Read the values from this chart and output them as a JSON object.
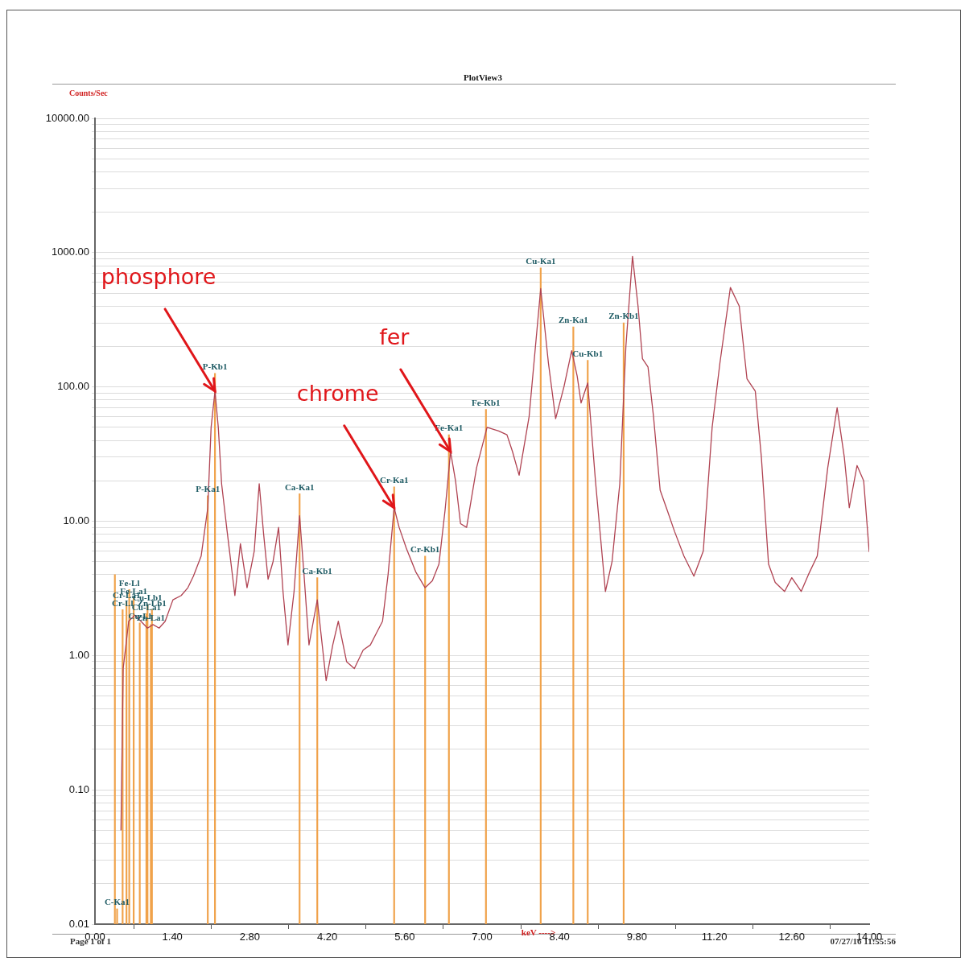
{
  "chart_data": {
    "type": "line",
    "title": "PlotView3",
    "xlabel": "keV ---->",
    "ylabel": "Counts/Sec",
    "log": "y",
    "grid": "y",
    "legend": false,
    "xlim": [
      0,
      14
    ],
    "ylim": [
      0.01,
      10000
    ],
    "xticks": [
      {
        "value": 0,
        "label": "0.00"
      },
      {
        "value": 1.4,
        "label": "1.40"
      },
      {
        "value": 2.8,
        "label": "2.80"
      },
      {
        "value": 4.2,
        "label": "4.20"
      },
      {
        "value": 5.6,
        "label": "5.60"
      },
      {
        "value": 7,
        "label": "7.00"
      },
      {
        "value": 8.4,
        "label": "8.40"
      },
      {
        "value": 9.8,
        "label": "9.80"
      },
      {
        "value": 11.2,
        "label": "11.20"
      },
      {
        "value": 12.6,
        "label": "12.60"
      },
      {
        "value": 14,
        "label": "14.00"
      }
    ],
    "yticks": [
      {
        "value": 0.01,
        "label": "0.01"
      },
      {
        "value": 0.02,
        "label": null
      },
      {
        "value": 0.03,
        "label": null
      },
      {
        "value": 0.04,
        "label": null
      },
      {
        "value": 0.05,
        "label": null
      },
      {
        "value": 0.06,
        "label": null
      },
      {
        "value": 0.07,
        "label": null
      },
      {
        "value": 0.08,
        "label": null
      },
      {
        "value": 0.09,
        "label": null
      },
      {
        "value": 0.1,
        "label": "0.10"
      },
      {
        "value": 0.2,
        "label": null
      },
      {
        "value": 0.3,
        "label": null
      },
      {
        "value": 0.4,
        "label": null
      },
      {
        "value": 0.5,
        "label": null
      },
      {
        "value": 0.6,
        "label": null
      },
      {
        "value": 0.7,
        "label": null
      },
      {
        "value": 0.8,
        "label": null
      },
      {
        "value": 0.9,
        "label": null
      },
      {
        "value": 1,
        "label": "1.00"
      },
      {
        "value": 2,
        "label": null
      },
      {
        "value": 3,
        "label": null
      },
      {
        "value": 4,
        "label": null
      },
      {
        "value": 5,
        "label": null
      },
      {
        "value": 6,
        "label": null
      },
      {
        "value": 7,
        "label": null
      },
      {
        "value": 8,
        "label": null
      },
      {
        "value": 9,
        "label": null
      },
      {
        "value": 10,
        "label": "10.00"
      },
      {
        "value": 20,
        "label": null
      },
      {
        "value": 30,
        "label": null
      },
      {
        "value": 40,
        "label": null
      },
      {
        "value": 50,
        "label": null
      },
      {
        "value": 60,
        "label": null
      },
      {
        "value": 70,
        "label": null
      },
      {
        "value": 80,
        "label": null
      },
      {
        "value": 90,
        "label": null
      },
      {
        "value": 100,
        "label": "100.00"
      },
      {
        "value": 200,
        "label": null
      },
      {
        "value": 300,
        "label": null
      },
      {
        "value": 400,
        "label": null
      },
      {
        "value": 500,
        "label": null
      },
      {
        "value": 600,
        "label": null
      },
      {
        "value": 700,
        "label": null
      },
      {
        "value": 800,
        "label": null
      },
      {
        "value": 900,
        "label": null
      },
      {
        "value": 1000,
        "label": "1000.00"
      },
      {
        "value": 2000,
        "label": null
      },
      {
        "value": 3000,
        "label": null
      },
      {
        "value": 4000,
        "label": null
      },
      {
        "value": 5000,
        "label": null
      },
      {
        "value": 6000,
        "label": null
      },
      {
        "value": 7000,
        "label": null
      },
      {
        "value": 8000,
        "label": null
      },
      {
        "value": 9000,
        "label": null
      },
      {
        "value": 10000,
        "label": "10000.00"
      }
    ],
    "series": [
      {
        "color": "#b04352",
        "x": [
          0.47,
          0.51,
          0.61,
          0.72,
          0.83,
          0.95,
          1.05,
          1.16,
          1.27,
          1.41,
          1.56,
          1.68,
          1.78,
          1.92,
          2.04,
          2.1,
          2.17,
          2.23,
          2.29,
          2.39,
          2.53,
          2.63,
          2.75,
          2.88,
          2.97,
          3.05,
          3.13,
          3.22,
          3.32,
          3.4,
          3.49,
          3.6,
          3.7,
          3.78,
          3.87,
          4.02,
          4.18,
          4.3,
          4.4,
          4.55,
          4.69,
          4.85,
          4.98,
          5.1,
          5.2,
          5.3,
          5.41,
          5.5,
          5.63,
          5.8,
          5.97,
          6.1,
          6.22,
          6.33,
          6.43,
          6.52,
          6.61,
          6.72,
          6.9,
          7.09,
          7.3,
          7.45,
          7.55,
          7.67,
          7.85,
          8.06,
          8.2,
          8.33,
          8.48,
          8.62,
          8.72,
          8.79,
          8.91,
          9.05,
          9.23,
          9.35,
          9.49,
          9.6,
          9.72,
          9.82,
          9.9,
          10.0,
          10.1,
          10.22,
          10.35,
          10.48,
          10.65,
          10.83,
          11.0,
          11.16,
          11.3,
          11.49,
          11.65,
          11.79,
          11.94,
          12.05,
          12.18,
          12.3,
          12.47,
          12.6,
          12.77,
          12.9,
          13.06,
          13.25,
          13.42,
          13.55,
          13.64,
          13.78,
          13.9,
          14.0
        ],
        "values": [
          0.05,
          0.8,
          1.8,
          2.0,
          1.8,
          1.6,
          1.7,
          1.6,
          1.8,
          2.6,
          2.8,
          3.2,
          3.9,
          5.5,
          12.6,
          50,
          93,
          50,
          19,
          8.4,
          2.8,
          6.8,
          3.2,
          6,
          19,
          8,
          3.7,
          5,
          9,
          3,
          1.2,
          3,
          11,
          4,
          1.2,
          2.6,
          0.65,
          1.2,
          1.8,
          0.9,
          0.8,
          1.1,
          1.2,
          1.5,
          1.8,
          4,
          12.6,
          9,
          6.3,
          4.2,
          3.2,
          3.6,
          4.8,
          12,
          33,
          20,
          9.6,
          9,
          25,
          50,
          47,
          44,
          33,
          22,
          60,
          540,
          150,
          58,
          100,
          186,
          120,
          76,
          107,
          20,
          3.0,
          5,
          19,
          200,
          940,
          400,
          162,
          141,
          60,
          17,
          12,
          8.4,
          5.5,
          3.9,
          6,
          50,
          150,
          550,
          400,
          115,
          93,
          30,
          4.8,
          3.5,
          3.0,
          3.8,
          3.0,
          4,
          5.5,
          25,
          70,
          30,
          12.6,
          26,
          20,
          5.9
        ]
      },
      {
        "type": "bar",
        "color": "#f0a24a",
        "x": [
          0.36,
          0.4,
          0.5,
          0.57,
          0.62,
          0.7,
          0.81,
          0.93,
          0.95,
          1.01,
          1.03,
          2.04,
          2.17,
          3.7,
          4.02,
          5.41,
          5.97,
          6.4,
          7.07,
          8.06,
          8.65,
          8.91,
          9.56
        ],
        "values": [
          4.0,
          0.013,
          2.2,
          2.5,
          3.1,
          2.7,
          1.75,
          2.05,
          2.4,
          1.7,
          2.2,
          15.5,
          126,
          16,
          3.8,
          18,
          5.5,
          44,
          68,
          770,
          280,
          158,
          300
        ],
        "value_labels": [
          null,
          "C-Ka1",
          "Cr-Ll",
          "Cr-La1",
          "Fe-Ll",
          "Fe-La1",
          "Cu-Ll",
          "Cu-La1",
          "Cu-Lb1",
          "Zn-La1",
          "Zn-Lb1",
          "P-Ka1",
          "P-Kb1",
          "Ca-Ka1",
          "Ca-Kb1",
          "Cr-Ka1",
          "Cr-Kb1",
          "Fe-Ka1",
          "Fe-Kb1",
          "Cu-Ka1",
          "Zn-Ka1",
          "Cu-Kb1",
          "Zn-Kb1"
        ]
      }
    ],
    "annotations": [
      {
        "text": "phosphore",
        "x": 2.17,
        "y": 93
      },
      {
        "text": "chrome",
        "x": 5.41,
        "y": 12.6
      },
      {
        "text": "fer",
        "x": 6.43,
        "y": 33
      },
      "Page 1 of 1",
      "07/27/16 11:55:56"
    ]
  }
}
